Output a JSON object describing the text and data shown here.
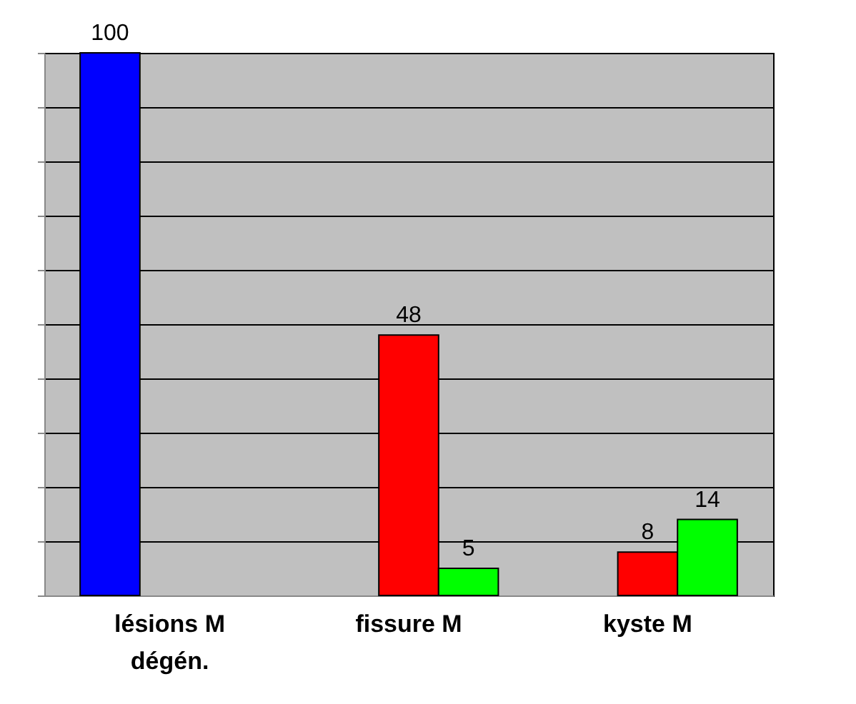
{
  "chart_data": {
    "type": "bar",
    "categories": [
      "lésions M dégén.",
      "fissure M",
      "kyste M"
    ],
    "series": [
      {
        "color": "#0000ff",
        "values": [
          100,
          null,
          null
        ]
      },
      {
        "color": "#ff0000",
        "values": [
          null,
          48,
          8
        ]
      },
      {
        "color": "#00ff00",
        "values": [
          null,
          5,
          14
        ]
      }
    ],
    "grid": "y",
    "data_labels": true,
    "tick_labels": "x",
    "legend": false
  }
}
